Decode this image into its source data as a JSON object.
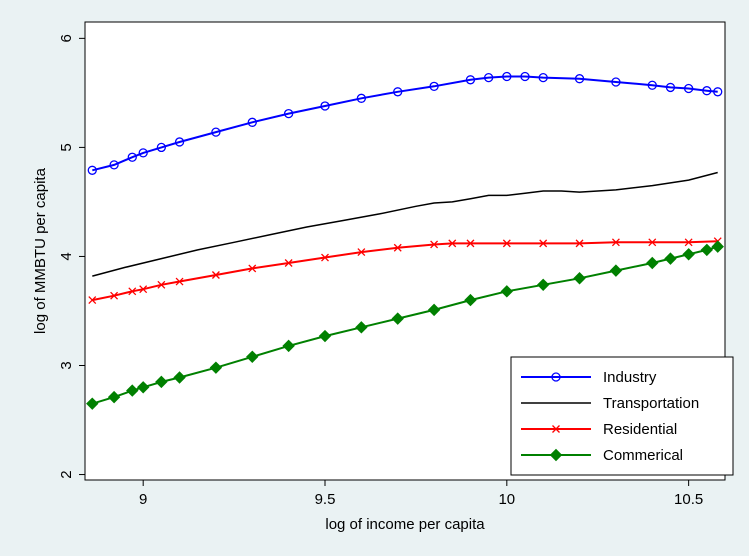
{
  "chart_data": {
    "type": "line",
    "title": "",
    "xlabel": "log of income per capita",
    "ylabel": "log of MMBTU per capita",
    "xlim": [
      8.84,
      10.6
    ],
    "ylim": [
      1.95,
      6.15
    ],
    "xticks": [
      9,
      9.5,
      10,
      10.5
    ],
    "xtick_labels": [
      "9",
      "9.5",
      "10",
      "10.5"
    ],
    "yticks": [
      2,
      3,
      4,
      5,
      6
    ],
    "ytick_labels": [
      "2",
      "3",
      "4",
      "5",
      "6"
    ],
    "grid": false,
    "legend_position": "bottom-right",
    "series": [
      {
        "name": "Industry",
        "color": "#0000ff",
        "marker": "circle",
        "x": [
          8.86,
          8.92,
          8.97,
          9.0,
          9.05,
          9.1,
          9.2,
          9.3,
          9.4,
          9.5,
          9.6,
          9.7,
          9.8,
          9.9,
          9.95,
          10.0,
          10.05,
          10.1,
          10.2,
          10.3,
          10.4,
          10.45,
          10.5,
          10.55,
          10.58
        ],
        "y": [
          4.79,
          4.84,
          4.91,
          4.95,
          5.0,
          5.05,
          5.14,
          5.23,
          5.31,
          5.38,
          5.45,
          5.51,
          5.56,
          5.62,
          5.64,
          5.65,
          5.65,
          5.64,
          5.63,
          5.6,
          5.57,
          5.55,
          5.54,
          5.52,
          5.51
        ]
      },
      {
        "name": "Transportation",
        "color": "#000000",
        "marker": "none",
        "x": [
          8.86,
          8.95,
          9.05,
          9.15,
          9.25,
          9.35,
          9.45,
          9.55,
          9.65,
          9.75,
          9.8,
          9.85,
          9.9,
          9.95,
          10.0,
          10.05,
          10.1,
          10.15,
          10.2,
          10.3,
          10.4,
          10.5,
          10.58
        ],
        "y": [
          3.82,
          3.9,
          3.98,
          4.06,
          4.13,
          4.2,
          4.27,
          4.33,
          4.39,
          4.46,
          4.49,
          4.5,
          4.53,
          4.56,
          4.56,
          4.58,
          4.6,
          4.6,
          4.59,
          4.61,
          4.65,
          4.7,
          4.77
        ]
      },
      {
        "name": "Residential",
        "color": "#ff0000",
        "marker": "x",
        "x": [
          8.86,
          8.92,
          8.97,
          9.0,
          9.05,
          9.1,
          9.2,
          9.3,
          9.4,
          9.5,
          9.6,
          9.7,
          9.8,
          9.85,
          9.9,
          10.0,
          10.1,
          10.2,
          10.3,
          10.4,
          10.5,
          10.58
        ],
        "y": [
          3.6,
          3.64,
          3.68,
          3.7,
          3.74,
          3.77,
          3.83,
          3.89,
          3.94,
          3.99,
          4.04,
          4.08,
          4.11,
          4.12,
          4.12,
          4.12,
          4.12,
          4.12,
          4.13,
          4.13,
          4.13,
          4.14
        ]
      },
      {
        "name": "Commerical",
        "color": "#008000",
        "marker": "diamond",
        "x": [
          8.86,
          8.92,
          8.97,
          9.0,
          9.05,
          9.1,
          9.2,
          9.3,
          9.4,
          9.5,
          9.6,
          9.7,
          9.8,
          9.9,
          10.0,
          10.1,
          10.2,
          10.3,
          10.4,
          10.45,
          10.5,
          10.55,
          10.58
        ],
        "y": [
          2.65,
          2.71,
          2.77,
          2.8,
          2.85,
          2.89,
          2.98,
          3.08,
          3.18,
          3.27,
          3.35,
          3.43,
          3.51,
          3.6,
          3.68,
          3.74,
          3.8,
          3.87,
          3.94,
          3.98,
          4.02,
          4.06,
          4.09
        ]
      }
    ]
  }
}
